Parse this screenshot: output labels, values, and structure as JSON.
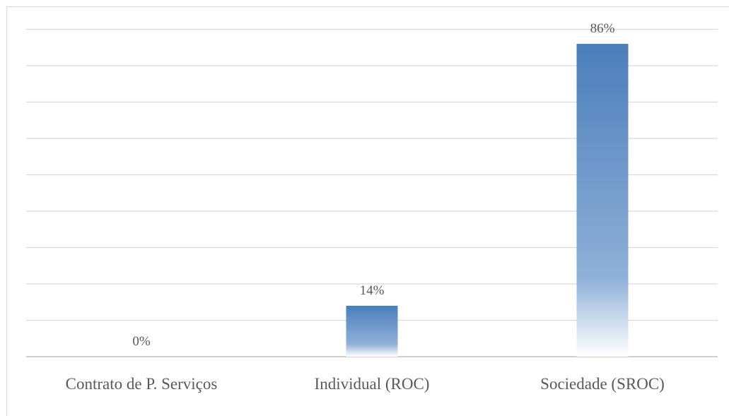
{
  "chart_data": {
    "type": "bar",
    "title": "",
    "xlabel": "",
    "ylabel": "",
    "categories": [
      "Contrato de P. Serviços",
      "Individual (ROC)",
      "Sociedade (SROC)"
    ],
    "values": [
      0,
      14,
      86
    ],
    "value_labels": [
      "0%",
      "14%",
      "86%"
    ],
    "unit": "%",
    "ylim": [
      0,
      90
    ],
    "y_gridline_step": 10,
    "grid": true,
    "legend": "none",
    "y_axis_visible": false,
    "colors": {
      "bar_top": "#4a7ebb",
      "bar_bottom": "#ffffff",
      "gridline": "#d9d9d9",
      "text": "#595959"
    }
  }
}
